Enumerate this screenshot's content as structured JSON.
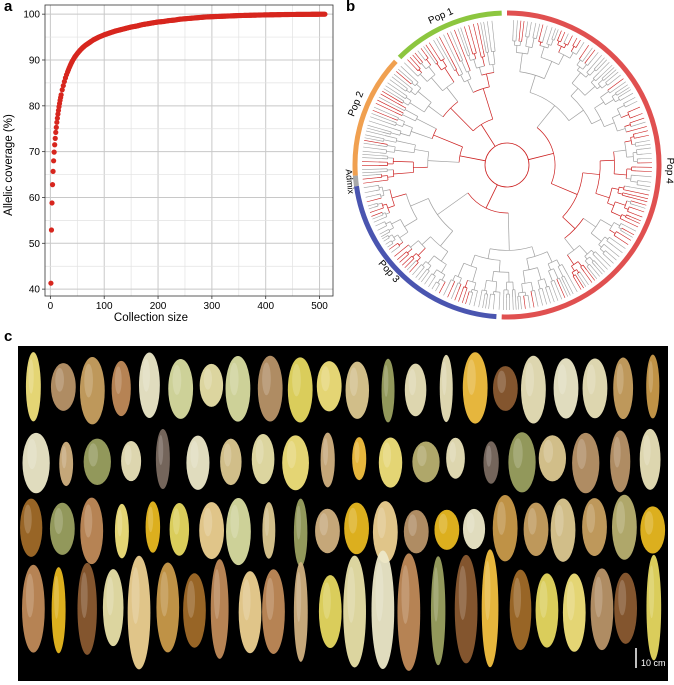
{
  "panels": {
    "a_label": "a",
    "b_label": "b",
    "c_label": "c"
  },
  "chart_data": [
    {
      "type": "scatter",
      "title": "",
      "xlabel": "Collection size",
      "ylabel": "Allelic coverage (%)",
      "xlim": [
        -10,
        525
      ],
      "ylim": [
        38.5,
        102
      ],
      "xticks": [
        0,
        100,
        200,
        300,
        400,
        500
      ],
      "yticks": [
        40,
        50,
        60,
        70,
        80,
        90,
        100
      ],
      "grid": true,
      "color": "#d7261e",
      "x": [
        1,
        2,
        3,
        4,
        5,
        6,
        7,
        8,
        9,
        10,
        11,
        12,
        13,
        14,
        15,
        16,
        17,
        18,
        19,
        20,
        22,
        24,
        26,
        28,
        30,
        32,
        35,
        38,
        41,
        45,
        50,
        55,
        60,
        65,
        70,
        80,
        90,
        100,
        110,
        120,
        130,
        140,
        150,
        160,
        170,
        180,
        190,
        200,
        210,
        220,
        230,
        240,
        250,
        260,
        270,
        280,
        290,
        300,
        310,
        320,
        330,
        340,
        350,
        360,
        370,
        380,
        390,
        400,
        410,
        420,
        430,
        440,
        450,
        460,
        470,
        480,
        490,
        500,
        510
      ],
      "y": [
        41.3,
        52.9,
        58.8,
        62.8,
        65.7,
        68.0,
        69.9,
        71.5,
        72.9,
        74.2,
        75.3,
        76.4,
        77.3,
        78.2,
        79.0,
        79.8,
        80.5,
        81.2,
        81.8,
        82.4,
        83.5,
        84.4,
        85.3,
        86.1,
        86.8,
        87.4,
        88.3,
        89.1,
        89.8,
        90.6,
        91.4,
        92.1,
        92.7,
        93.2,
        93.6,
        94.4,
        95.0,
        95.5,
        95.9,
        96.3,
        96.6,
        96.9,
        97.2,
        97.4,
        97.7,
        97.9,
        98.1,
        98.3,
        98.4,
        98.6,
        98.7,
        98.9,
        99.0,
        99.1,
        99.2,
        99.3,
        99.4,
        99.45,
        99.5,
        99.55,
        99.6,
        99.65,
        99.7,
        99.73,
        99.76,
        99.79,
        99.82,
        99.85,
        99.87,
        99.89,
        99.91,
        99.93,
        99.94,
        99.95,
        99.96,
        99.97,
        99.98,
        99.99,
        100.0
      ]
    },
    {
      "type": "other",
      "description_kind": "circular-dendrogram",
      "labels": [
        "Pop 1",
        "Pop 2",
        "Admix",
        "Pop 3",
        "Pop 4"
      ],
      "colors": {
        "Pop 1": "#8cc63f",
        "Pop 2": "#f0a050",
        "Admix": "#a9a9a9",
        "Pop 3": "#4a55b0",
        "Pop 4": "#e05050"
      },
      "branch_colors": {
        "highlight": "#cc2020",
        "other": "#a0a0a0"
      }
    }
  ],
  "photo": {
    "scale_label": "10 cm"
  }
}
